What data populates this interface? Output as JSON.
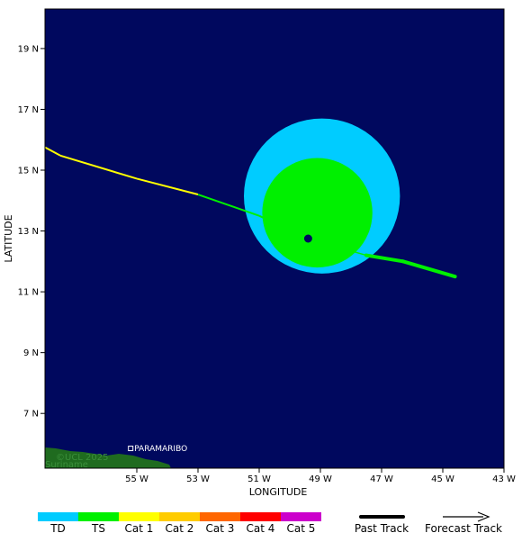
{
  "axes": {
    "x_title": "LONGITUDE",
    "y_title": "LATITUDE",
    "x_ticks": [
      {
        "value": -55,
        "label": "55 W"
      },
      {
        "value": -53,
        "label": "53 W"
      },
      {
        "value": -51,
        "label": "51 W"
      },
      {
        "value": -49,
        "label": "49 W"
      },
      {
        "value": -47,
        "label": "47 W"
      },
      {
        "value": -45,
        "label": "45 W"
      },
      {
        "value": -43,
        "label": "43 W"
      }
    ],
    "y_ticks": [
      {
        "value": 19,
        "label": "19 N"
      },
      {
        "value": 17,
        "label": "17 N"
      },
      {
        "value": 15,
        "label": "15 N"
      },
      {
        "value": 13,
        "label": "13 N"
      },
      {
        "value": 11,
        "label": "11 N"
      },
      {
        "value": 9,
        "label": "9 N"
      },
      {
        "value": 7,
        "label": "7 N"
      }
    ],
    "lon_range": [
      -58.0,
      -43.0
    ],
    "lat_range": [
      5.2,
      20.3
    ]
  },
  "map": {
    "ocean_color": "#00085e",
    "land_color": "#1f6b1f",
    "place_label": "PARAMARIBO",
    "place_lon": -55.2,
    "place_lat": 5.85,
    "watermark": "©UCL 2025",
    "country_label": "Suriname"
  },
  "storm": {
    "center_lon": -49.4,
    "center_lat": 12.75,
    "ts_wind_field": {
      "center_lon": -49.1,
      "center_lat": 13.6,
      "radius_deg": 1.8,
      "color": "#00f000"
    },
    "td_wind_field": {
      "center_lon": -48.95,
      "center_lat": 14.15,
      "radius_deg": 2.55,
      "color": "#00ccff"
    },
    "past_track": [
      {
        "lon": -58.0,
        "lat": 15.75,
        "cat": "Cat 1"
      },
      {
        "lon": -57.5,
        "lat": 15.48,
        "cat": "Cat 1"
      },
      {
        "lon": -55.0,
        "lat": 14.72,
        "cat": "Cat 1"
      },
      {
        "lon": -53.0,
        "lat": 14.2,
        "cat": "Cat 1"
      },
      {
        "lon": -51.0,
        "lat": 13.5,
        "cat": "TS"
      },
      {
        "lon": -49.4,
        "lat": 12.75,
        "cat": "TS"
      }
    ],
    "forecast_track": [
      {
        "lon": -49.4,
        "lat": 12.75,
        "cat": "TS"
      },
      {
        "lon": -47.5,
        "lat": 12.2,
        "cat": "TS"
      },
      {
        "lon": -46.3,
        "lat": 12.0,
        "cat": "TS"
      },
      {
        "lon": -44.6,
        "lat": 11.5,
        "cat": "TS"
      }
    ]
  },
  "legend": {
    "categories": [
      {
        "label": "TD",
        "color": "#00ccff"
      },
      {
        "label": "TS",
        "color": "#00f000"
      },
      {
        "label": "Cat 1",
        "color": "#ffff00"
      },
      {
        "label": "Cat 2",
        "color": "#ffcc00"
      },
      {
        "label": "Cat 3",
        "color": "#ff6600"
      },
      {
        "label": "Cat 4",
        "color": "#ff0000"
      },
      {
        "label": "Cat 5",
        "color": "#cc00cc"
      }
    ],
    "past_track_label": "Past Track",
    "forecast_track_label": "Forecast Track"
  }
}
